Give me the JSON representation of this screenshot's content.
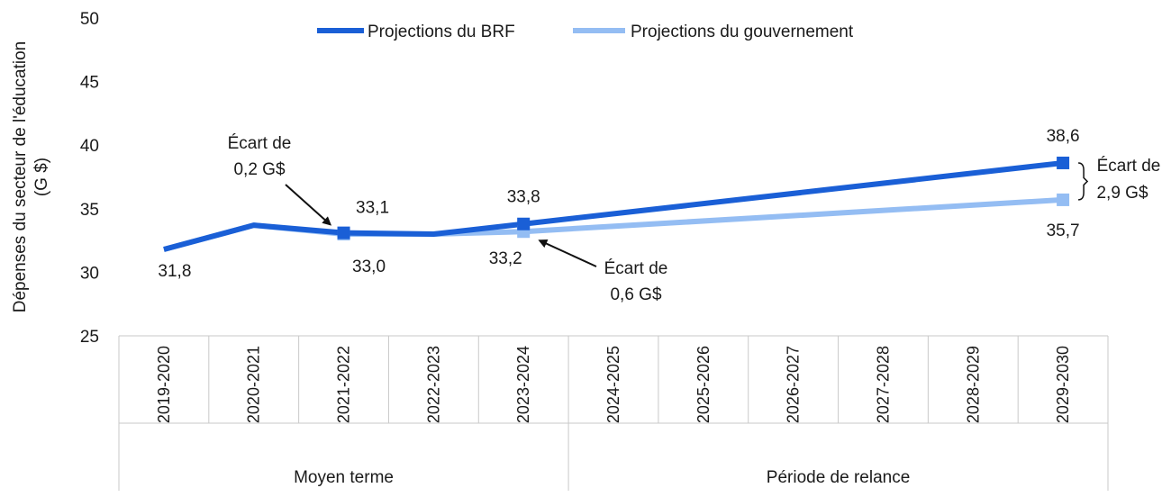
{
  "chart_data": {
    "type": "line",
    "title": "",
    "ylabel": [
      "Dépenses du secteur de l'éducation",
      "(G $)"
    ],
    "xlabel": "",
    "ylim": [
      25,
      50
    ],
    "yticks": [
      25,
      30,
      35,
      40,
      45,
      50
    ],
    "grid": false,
    "legend_position": "top-center",
    "categories": [
      "2019-2020",
      "2020-2021",
      "2021-2022",
      "2022-2023",
      "2023-2024",
      "2024-2025",
      "2025-2026",
      "2026-2027",
      "2027-2028",
      "2028-2029",
      "2029-2030"
    ],
    "groups": [
      {
        "label": "Moyen terme",
        "from": 0,
        "to": 4
      },
      {
        "label": "Période de relance",
        "from": 5,
        "to": 10
      }
    ],
    "series": [
      {
        "name": "Projections du BRF",
        "color": "#1a5fd6",
        "values": [
          31.8,
          33.7,
          33.1,
          33.0,
          33.8,
          34.76,
          35.72,
          36.68,
          37.64,
          38.6,
          38.6
        ],
        "marker_indices": [
          2,
          4,
          10
        ]
      },
      {
        "name": "Projections du gouvernement",
        "color": "#94bdf3",
        "values": [
          31.8,
          33.7,
          33.0,
          33.0,
          33.2,
          33.7,
          34.2,
          34.7,
          35.2,
          35.7,
          35.7
        ],
        "marker_indices": [
          2,
          4,
          10
        ]
      }
    ],
    "data_labels": [
      {
        "series": 0,
        "index": 2,
        "text": "33,1"
      },
      {
        "series": 0,
        "index": 4,
        "text": "33,8"
      },
      {
        "series": 0,
        "index": 10,
        "text": "38,6"
      },
      {
        "series": 1,
        "index": 0,
        "text": "31,8"
      },
      {
        "series": 1,
        "index": 2,
        "text": "33,0"
      },
      {
        "series": 1,
        "index": 4,
        "text": "33,2"
      },
      {
        "series": 1,
        "index": 10,
        "text": "35,7"
      }
    ],
    "annotations": [
      {
        "lines": [
          "Écart de",
          "0,2 G$"
        ],
        "target_index": 2
      },
      {
        "lines": [
          "Écart de",
          "0,6 G$"
        ],
        "target_index": 4
      },
      {
        "lines": [
          "Écart de",
          "2,9 G$"
        ],
        "target_index": 10
      }
    ]
  }
}
